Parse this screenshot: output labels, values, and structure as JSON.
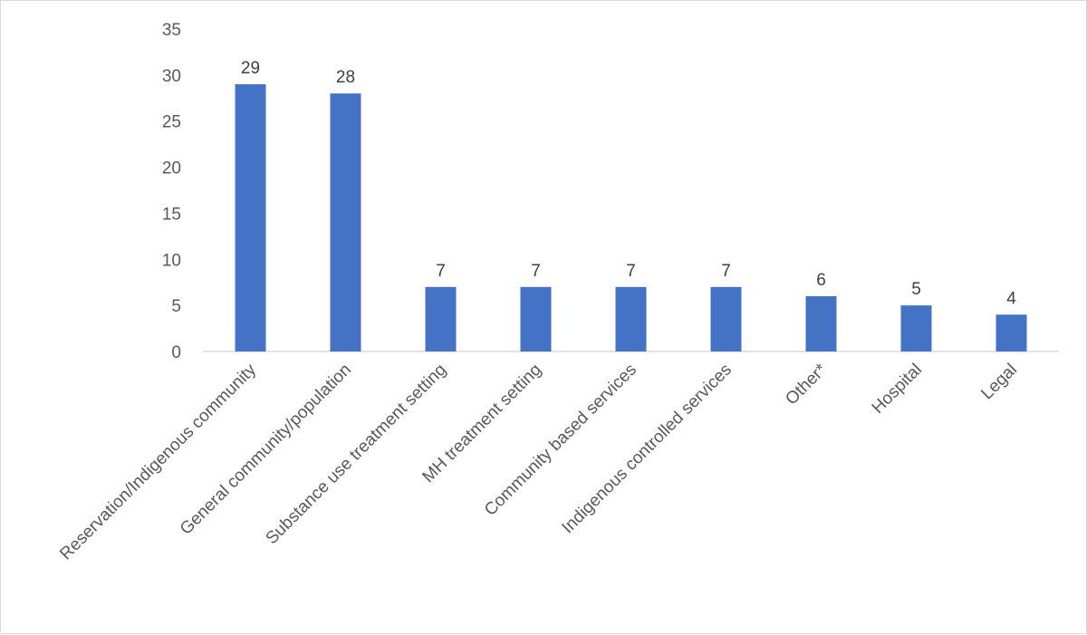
{
  "chart_data": {
    "type": "bar",
    "title": "",
    "xlabel": "",
    "ylabel": "",
    "categories": [
      "Reservation/Indigenous community",
      "General community/population",
      "Substance use treatment setting",
      "MH treatment setting",
      "Community based services",
      "Indigenous controlled services",
      "Other*",
      "Hospital",
      "Legal"
    ],
    "values": [
      29,
      28,
      7,
      7,
      7,
      7,
      6,
      5,
      4
    ],
    "ylim": [
      0,
      35
    ],
    "yticks": [
      0,
      5,
      10,
      15,
      20,
      25,
      30,
      35
    ],
    "grid": false,
    "legend": "none",
    "bar_color": "#4472C4",
    "axis_color": "#d9d9d9",
    "data_labels": true
  }
}
